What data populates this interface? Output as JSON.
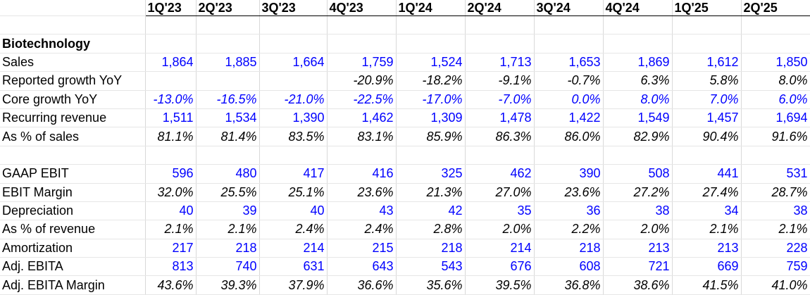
{
  "columns": [
    "1Q'23",
    "2Q'23",
    "3Q'23",
    "4Q'23",
    "1Q'24",
    "2Q'24",
    "3Q'24",
    "4Q'24",
    "1Q'25",
    "2Q'25"
  ],
  "section1": {
    "title": "Biotechnology",
    "rows": [
      {
        "label": "Sales",
        "style": "blue",
        "values": [
          "1,864",
          "1,885",
          "1,664",
          "1,759",
          "1,524",
          "1,713",
          "1,653",
          "1,869",
          "1,612",
          "1,850"
        ]
      },
      {
        "label": "Reported growth YoY",
        "style": "italic",
        "values": [
          "",
          "",
          "",
          "-20.9%",
          "-18.2%",
          "-9.1%",
          "-0.7%",
          "6.3%",
          "5.8%",
          "8.0%"
        ]
      },
      {
        "label": "Core growth YoY",
        "style": "blue-italic",
        "values": [
          "-13.0%",
          "-16.5%",
          "-21.0%",
          "-22.5%",
          "-17.0%",
          "-7.0%",
          "0.0%",
          "8.0%",
          "7.0%",
          "6.0%"
        ]
      },
      {
        "label": "Recurring revenue",
        "style": "blue",
        "values": [
          "1,511",
          "1,534",
          "1,390",
          "1,462",
          "1,309",
          "1,478",
          "1,422",
          "1,549",
          "1,457",
          "1,694"
        ]
      },
      {
        "label": "As % of sales",
        "style": "italic",
        "values": [
          "81.1%",
          "81.4%",
          "83.5%",
          "83.1%",
          "85.9%",
          "86.3%",
          "86.0%",
          "82.9%",
          "90.4%",
          "91.6%"
        ]
      }
    ]
  },
  "section2": {
    "rows": [
      {
        "label": "GAAP EBIT",
        "style": "blue",
        "values": [
          "596",
          "480",
          "417",
          "416",
          "325",
          "462",
          "390",
          "508",
          "441",
          "531"
        ]
      },
      {
        "label": "EBIT Margin",
        "style": "italic",
        "values": [
          "32.0%",
          "25.5%",
          "25.1%",
          "23.6%",
          "21.3%",
          "27.0%",
          "23.6%",
          "27.2%",
          "27.4%",
          "28.7%"
        ]
      },
      {
        "label": "Depreciation",
        "style": "blue",
        "values": [
          "40",
          "39",
          "40",
          "43",
          "42",
          "35",
          "36",
          "38",
          "34",
          "38"
        ]
      },
      {
        "label": "As % of revenue",
        "style": "italic",
        "values": [
          "2.1%",
          "2.1%",
          "2.4%",
          "2.4%",
          "2.8%",
          "2.0%",
          "2.2%",
          "2.0%",
          "2.1%",
          "2.1%"
        ]
      },
      {
        "label": "Amortization",
        "style": "blue",
        "values": [
          "217",
          "218",
          "214",
          "215",
          "218",
          "214",
          "218",
          "213",
          "213",
          "228"
        ]
      },
      {
        "label": "Adj. EBITA",
        "style": "blue",
        "values": [
          "813",
          "740",
          "631",
          "643",
          "543",
          "676",
          "608",
          "721",
          "669",
          "759"
        ]
      },
      {
        "label": "Adj. EBITA Margin",
        "style": "italic",
        "values": [
          "43.6%",
          "39.3%",
          "37.9%",
          "36.6%",
          "35.6%",
          "39.5%",
          "36.8%",
          "38.6%",
          "41.5%",
          "41.0%"
        ]
      }
    ]
  }
}
